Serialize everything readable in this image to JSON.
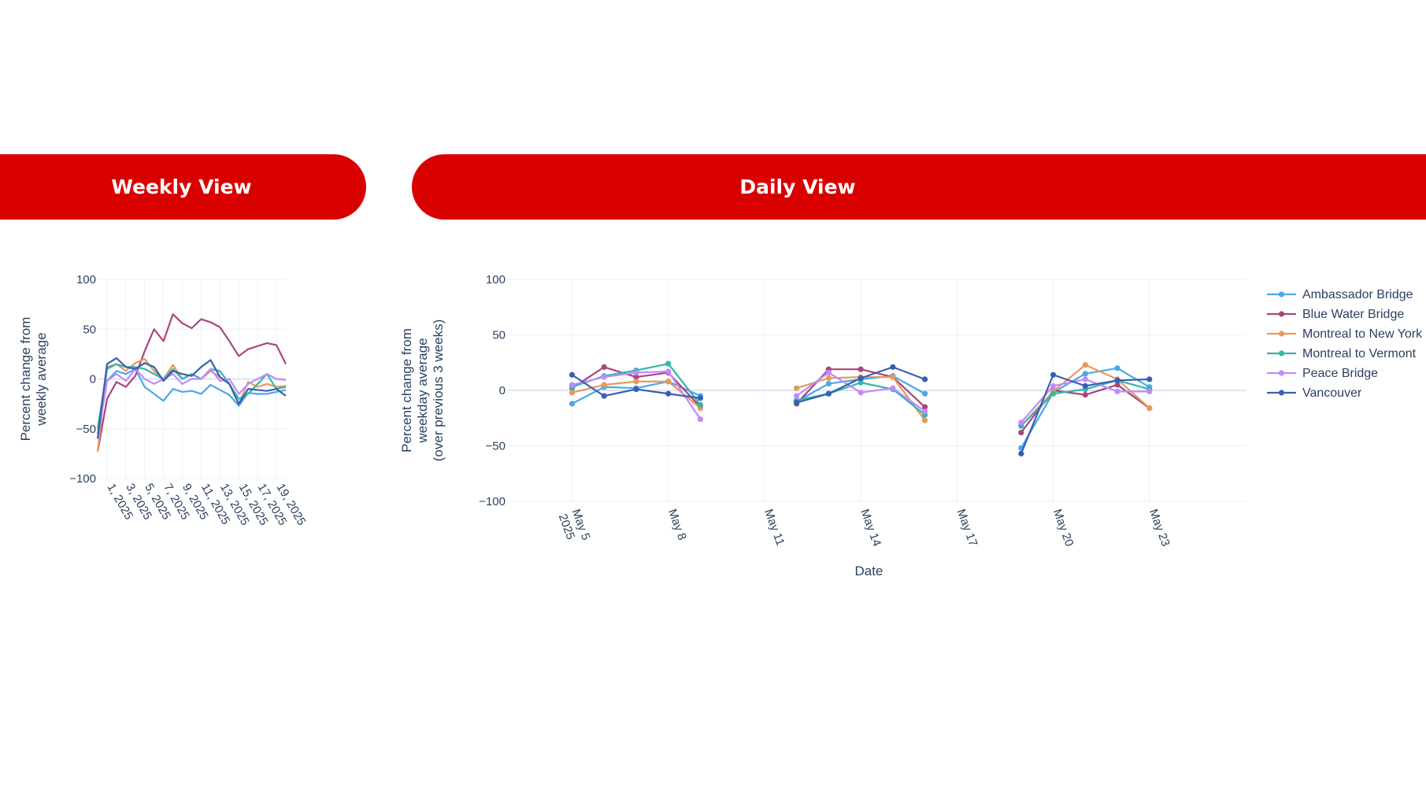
{
  "header": {
    "weekly_label": "Weekly View",
    "daily_label": "Daily View"
  },
  "colors": {
    "pill": "#d90000",
    "Ambassador Bridge": "#4aa8e8",
    "Blue Water Bridge": "#a8467e",
    "Montreal to New York": "#e49a5e",
    "Montreal to Vermont": "#36b5aa",
    "Peace Bridge": "#c08aff",
    "Vancouver": "#3a5fb0"
  },
  "chart_data": [
    {
      "type": "line",
      "title": "",
      "ylabel": "Percent change from weekly average",
      "xlabel": "",
      "ylim": [
        -100,
        100
      ],
      "yticks": [
        -100,
        -50,
        0,
        50,
        100
      ],
      "x": [
        0,
        1,
        2,
        3,
        4,
        5,
        6,
        7,
        8,
        9,
        10,
        11,
        12,
        13,
        14,
        15,
        16,
        17,
        18,
        19,
        20
      ],
      "xtick_labels": [
        "1, 2025",
        "3, 2025",
        "5, 2025",
        "7, 2025",
        "9, 2025",
        "11, 2025",
        "13, 2025",
        "15, 2025",
        "17, 2025",
        "19, 2025"
      ],
      "xtick_positions": [
        1,
        3,
        5,
        7,
        9,
        11,
        13,
        15,
        17,
        19
      ],
      "grid": true,
      "legend": "none",
      "series": [
        {
          "name": "Ambassador Bridge",
          "values": [
            -55,
            -2,
            8,
            5,
            10,
            -8,
            -15,
            -22,
            -10,
            -13,
            -12,
            -15,
            -6,
            -11,
            -16,
            -27,
            -14,
            -15,
            -15,
            -13,
            -11
          ]
        },
        {
          "name": "Blue Water Bridge",
          "values": [
            -73,
            -20,
            -3,
            -8,
            3,
            28,
            50,
            38,
            65,
            56,
            51,
            60,
            57,
            52,
            38,
            23,
            30,
            33,
            36,
            34,
            15
          ]
        },
        {
          "name": "Montreal to New York",
          "values": [
            -73,
            12,
            15,
            8,
            16,
            20,
            8,
            0,
            14,
            0,
            5,
            0,
            8,
            2,
            -5,
            -25,
            -3,
            -8,
            -5,
            -8,
            -7
          ]
        },
        {
          "name": "Montreal to Vermont",
          "values": [
            -50,
            10,
            15,
            12,
            12,
            10,
            5,
            0,
            10,
            0,
            5,
            0,
            10,
            8,
            -5,
            -20,
            -15,
            -5,
            5,
            -10,
            -8
          ]
        },
        {
          "name": "Peace Bridge",
          "values": [
            -60,
            -2,
            5,
            -2,
            10,
            0,
            -5,
            0,
            5,
            -5,
            0,
            0,
            10,
            -2,
            0,
            -15,
            -5,
            0,
            5,
            0,
            -1
          ]
        },
        {
          "name": "Vancouver",
          "values": [
            -60,
            15,
            21,
            12,
            10,
            16,
            12,
            -2,
            8,
            5,
            3,
            12,
            19,
            2,
            -5,
            -25,
            -10,
            -11,
            -12,
            -10,
            -17
          ]
        }
      ]
    },
    {
      "type": "line",
      "title": "",
      "ylabel": "Percent change from weekday average (over previous 3 weeks)",
      "xlabel": "Date",
      "ylim": [
        -100,
        100
      ],
      "yticks": [
        -100,
        -50,
        0,
        50,
        100
      ],
      "x_unit": "days since May 5 2025",
      "xtick_labels": [
        "May 5\n2025",
        "May 8",
        "May 11",
        "May 14",
        "May 17",
        "May 20",
        "May 23"
      ],
      "xtick_positions": [
        0,
        3,
        6,
        9,
        12,
        15,
        18
      ],
      "x": [
        0,
        1,
        2,
        3,
        4,
        7,
        8,
        9,
        10,
        11,
        14,
        15,
        16,
        17,
        18
      ],
      "segments": [
        [
          0,
          1,
          2,
          3,
          4
        ],
        [
          7,
          8,
          9,
          10,
          11
        ],
        [
          14,
          15,
          16,
          17,
          18
        ]
      ],
      "grid": true,
      "legend": "top-right",
      "series": [
        {
          "name": "Ambassador Bridge",
          "values": [
            -12,
            3,
            2,
            8,
            -5,
            -10,
            6,
            10,
            13,
            -3,
            -52,
            -2,
            15,
            20,
            3
          ]
        },
        {
          "name": "Blue Water Bridge",
          "values": [
            2,
            21,
            12,
            16,
            -15,
            -12,
            19,
            19,
            12,
            -15,
            -38,
            0,
            -4,
            5,
            -16
          ]
        },
        {
          "name": "Montreal to New York",
          "values": [
            -2,
            5,
            8,
            8,
            -16,
            2,
            11,
            12,
            12,
            -27,
            -32,
            -1,
            23,
            10,
            -16
          ]
        },
        {
          "name": "Montreal to Vermont",
          "values": [
            3,
            13,
            18,
            24,
            -13,
            -9,
            -3,
            7,
            1,
            -22,
            -32,
            -3,
            1,
            9,
            1
          ]
        },
        {
          "name": "Peace Bridge",
          "values": [
            5,
            12,
            16,
            17,
            -26,
            -5,
            16,
            -2,
            2,
            -19,
            -29,
            4,
            10,
            -1,
            -1
          ]
        },
        {
          "name": "Vancouver",
          "values": [
            14,
            -5,
            1,
            -3,
            -7,
            -11,
            -3,
            11,
            21,
            10,
            -57,
            14,
            4,
            9,
            10
          ]
        }
      ]
    }
  ]
}
